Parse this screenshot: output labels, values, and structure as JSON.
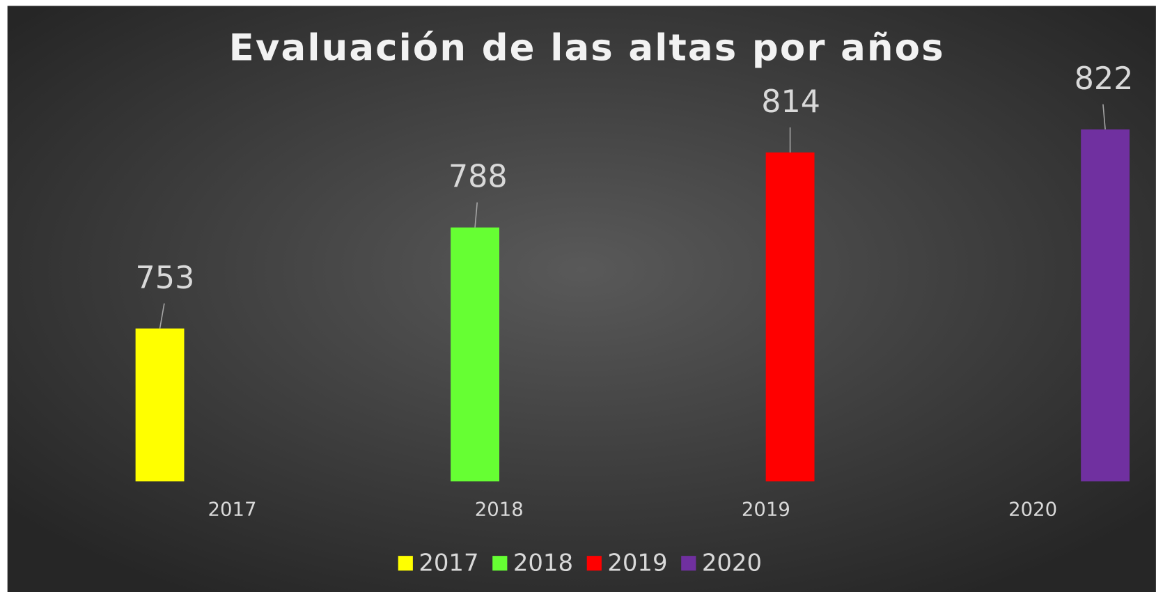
{
  "chart_data": {
    "type": "bar",
    "title": "Evaluación de las altas por años",
    "categories": [
      "2017",
      "2018",
      "2019",
      "2020"
    ],
    "series": [
      {
        "name": "2017",
        "color": "#ffff00",
        "values": [
          753,
          null,
          null,
          null
        ]
      },
      {
        "name": "2018",
        "color": "#66ff33",
        "values": [
          null,
          788,
          null,
          null
        ]
      },
      {
        "name": "2019",
        "color": "#ff0000",
        "values": [
          null,
          null,
          814,
          null
        ]
      },
      {
        "name": "2020",
        "color": "#7030a0",
        "values": [
          null,
          null,
          null,
          822
        ]
      }
    ],
    "ylim": [
      700,
      840
    ],
    "grid": false,
    "legend": "bottom"
  }
}
